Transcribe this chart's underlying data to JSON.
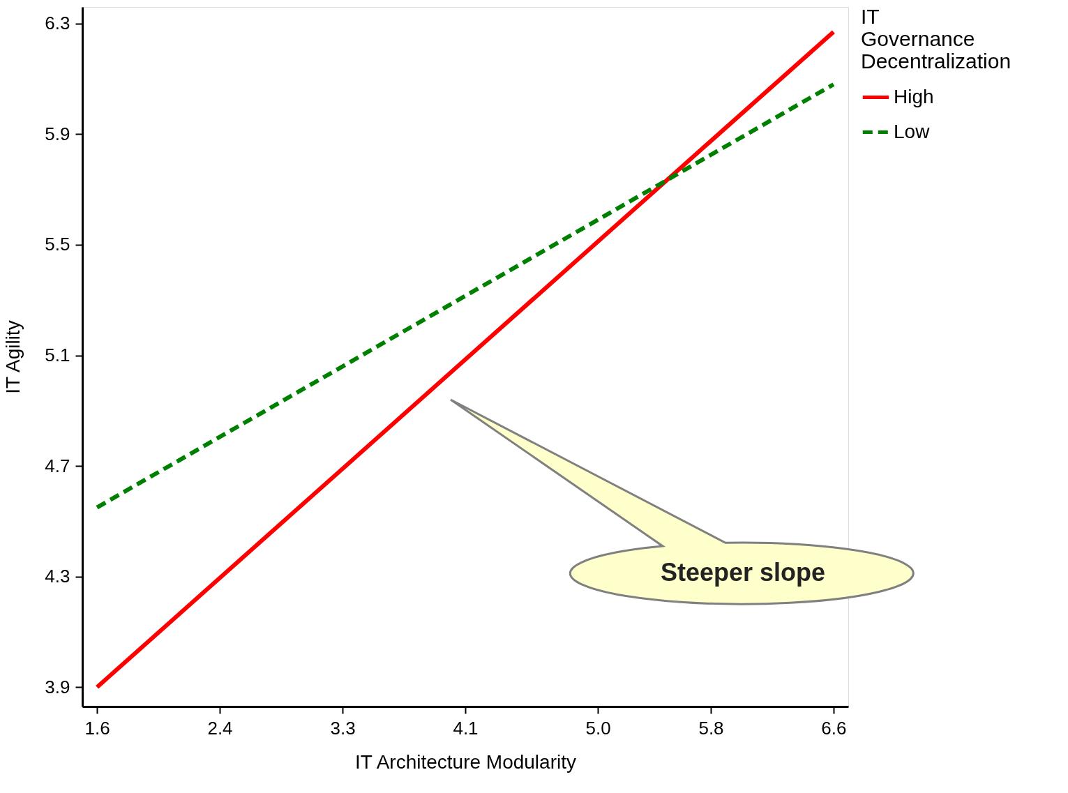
{
  "chart_data": {
    "type": "line",
    "xlabel": "IT Architecture Modularity",
    "ylabel": "IT Agility",
    "legend_title": "IT Governance Decentralization",
    "legend": "top right",
    "grid": false,
    "marker": "none",
    "x": [
      1.6,
      6.6
    ],
    "series": [
      {
        "name": "High",
        "color": "#ff0000",
        "line_style": "solid",
        "values": [
          3.9,
          6.27
        ]
      },
      {
        "name": "Low",
        "color": "#008000",
        "line_style": "dashed",
        "values": [
          4.55,
          6.08
        ]
      }
    ],
    "xlim": [
      1.5,
      6.7
    ],
    "ylim": [
      3.83,
      6.36
    ],
    "xticks": [
      1.6,
      {
        "value": 2.433,
        "label": "2.4"
      },
      {
        "value": 3.267,
        "label": "3.3"
      },
      4.1,
      {
        "value": 5.0,
        "label": "5.0"
      },
      {
        "value": 5.767,
        "label": "5.8"
      },
      6.6
    ],
    "yticks": [
      3.9,
      4.3,
      4.7,
      5.1,
      5.5,
      5.9,
      6.3
    ],
    "annotations": [
      "Steeper slope"
    ]
  }
}
